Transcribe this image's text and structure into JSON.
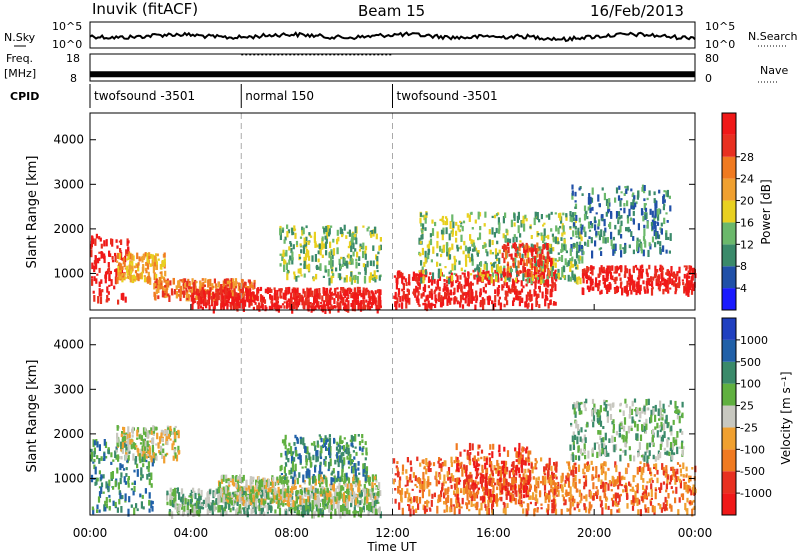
{
  "header": {
    "station": "Inuvik (fitACF)",
    "beam": "Beam 15",
    "date": "16/Feb/2013"
  },
  "noise_panel": {
    "left_label": "N.Sky",
    "right_label": "N.Search",
    "left_ticks": [
      "10^5",
      "10^0"
    ],
    "right_ticks": [
      "10^5",
      "10^0"
    ]
  },
  "freq_panel": {
    "left_label_1": "Freq.",
    "left_label_2": "[MHz]",
    "right_label": "Nave",
    "left_ticks": [
      "18",
      "8"
    ],
    "right_ticks": [
      "80",
      "0"
    ],
    "freq_mhz": 10.5,
    "nave_segments": [
      {
        "start_h": 0,
        "end_h": 6.0,
        "nave": 20
      },
      {
        "start_h": 6.0,
        "end_h": 12.0,
        "nave": 78
      },
      {
        "start_h": 12.0,
        "end_h": 24,
        "nave": 20
      }
    ]
  },
  "cpid": {
    "label": "CPID",
    "segments": [
      {
        "start_h": 0,
        "end_h": 6.0,
        "name": "twofsound -3501"
      },
      {
        "start_h": 6.0,
        "end_h": 12.0,
        "name": "normal 150"
      },
      {
        "start_h": 12.0,
        "end_h": 24,
        "name": "twofsound -3501"
      }
    ]
  },
  "x_axis": {
    "label": "Time UT",
    "ticks": [
      "00:00",
      "04:00",
      "08:00",
      "12:00",
      "16:00",
      "20:00",
      "00:00"
    ]
  },
  "power_panel": {
    "ylabel": "Slant Range [km]",
    "yticks": [
      "1000",
      "2000",
      "3000",
      "4000"
    ],
    "colorbar_title": "Power [dB]",
    "colorbar_ticks": [
      "4",
      "8",
      "12",
      "16",
      "20",
      "24",
      "28"
    ],
    "colors": [
      "#1a1aff",
      "#2050a8",
      "#3a8a6a",
      "#6bb86b",
      "#e8d020",
      "#f0a030",
      "#f07a20",
      "#e83020",
      "#f01818"
    ]
  },
  "velocity_panel": {
    "ylabel": "Slant Range [km]",
    "yticks": [
      "1000",
      "2000",
      "3000",
      "4000"
    ],
    "colorbar_title": "Velocity [m s⁻¹]",
    "colorbar_ticks": [
      "1000",
      "500",
      "100",
      "25",
      "-25",
      "-100",
      "-500",
      "-1000"
    ],
    "colors": [
      "#2040c0",
      "#2060a8",
      "#3a8a6a",
      "#60b040",
      "#c8c8c0",
      "#f0a030",
      "#f07a20",
      "#e83020",
      "#f01818"
    ]
  },
  "chart_data": {
    "type": "heatmap",
    "x_range_h": [
      0,
      24
    ],
    "y_range_km": [
      180,
      4600
    ],
    "features": [
      {
        "panel": "power",
        "start_h": 0.0,
        "end_h": 1.5,
        "min_km": 400,
        "max_km": 1900,
        "level": 8
      },
      {
        "panel": "power",
        "start_h": 1.0,
        "end_h": 3.0,
        "min_km": 900,
        "max_km": 1500,
        "level": 5
      },
      {
        "panel": "power",
        "start_h": 2.5,
        "end_h": 6.5,
        "min_km": 500,
        "max_km": 900,
        "level": 6
      },
      {
        "panel": "power",
        "start_h": 4.0,
        "end_h": 11.5,
        "min_km": 250,
        "max_km": 700,
        "level": 8
      },
      {
        "panel": "power",
        "start_h": 7.5,
        "end_h": 11.5,
        "min_km": 900,
        "max_km": 2100,
        "level": 3
      },
      {
        "panel": "power",
        "start_h": 12.0,
        "end_h": 18.5,
        "min_km": 300,
        "max_km": 1100,
        "level": 8
      },
      {
        "panel": "power",
        "start_h": 13.0,
        "end_h": 19.5,
        "min_km": 900,
        "max_km": 2400,
        "level": 3
      },
      {
        "panel": "power",
        "start_h": 16.3,
        "end_h": 18.3,
        "min_km": 1000,
        "max_km": 1700,
        "level": 7
      },
      {
        "panel": "power",
        "start_h": 19.5,
        "end_h": 24.0,
        "min_km": 600,
        "max_km": 1200,
        "level": 8
      },
      {
        "panel": "power",
        "start_h": 19.0,
        "end_h": 23.0,
        "min_km": 1500,
        "max_km": 3000,
        "level": 2
      },
      {
        "panel": "velocity",
        "start_h": 0.0,
        "end_h": 2.5,
        "min_km": 300,
        "max_km": 1900,
        "level": 2
      },
      {
        "panel": "velocity",
        "start_h": 1.0,
        "end_h": 3.5,
        "min_km": 1500,
        "max_km": 2200,
        "level": 4
      },
      {
        "panel": "velocity",
        "start_h": 3.0,
        "end_h": 11.5,
        "min_km": 250,
        "max_km": 800,
        "level": 3
      },
      {
        "panel": "velocity",
        "start_h": 5.0,
        "end_h": 11.5,
        "min_km": 500,
        "max_km": 1100,
        "level": 4
      },
      {
        "panel": "velocity",
        "start_h": 7.5,
        "end_h": 11.0,
        "min_km": 1000,
        "max_km": 2000,
        "level": 2
      },
      {
        "panel": "velocity",
        "start_h": 12.0,
        "end_h": 18.5,
        "min_km": 300,
        "max_km": 1500,
        "level": 6
      },
      {
        "panel": "velocity",
        "start_h": 14.5,
        "end_h": 17.5,
        "min_km": 600,
        "max_km": 1800,
        "level": 7
      },
      {
        "panel": "velocity",
        "start_h": 18.0,
        "end_h": 24.0,
        "min_km": 300,
        "max_km": 1400,
        "level": 6
      },
      {
        "panel": "velocity",
        "start_h": 19.0,
        "end_h": 23.5,
        "min_km": 1500,
        "max_km": 2800,
        "level": 3
      }
    ]
  }
}
